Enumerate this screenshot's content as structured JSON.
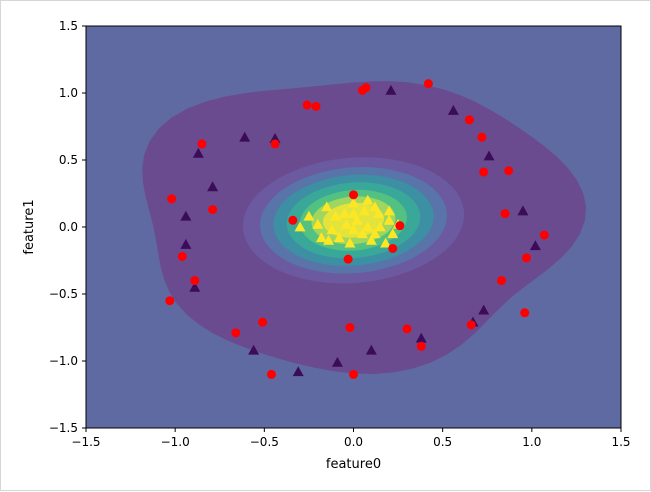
{
  "chart_data": {
    "type": "scatter",
    "title": "",
    "xlabel": "feature0",
    "ylabel": "feature1",
    "xlim": [
      -1.5,
      1.5
    ],
    "ylim": [
      -1.5,
      1.5
    ],
    "xticks": [
      "−1.5",
      "−1.0",
      "−0.5",
      "0.0",
      "0.5",
      "1.0",
      "1.5"
    ],
    "xtick_values": [
      -1.5,
      -1.0,
      -0.5,
      0.0,
      0.5,
      1.0,
      1.5
    ],
    "yticks": [
      "−1.5",
      "−1.0",
      "−0.5",
      "0.0",
      "0.5",
      "1.0",
      "1.5"
    ],
    "ytick_values": [
      -1.5,
      -1.0,
      -0.5,
      0.0,
      0.5,
      1.0,
      1.5
    ],
    "grid": false,
    "background": "decision-function contour (filled)",
    "contour_colors": [
      "#5f6aa3",
      "#6a4a8f",
      "#6e5fa0",
      "#4f78a6",
      "#3d97a1",
      "#3fb48f",
      "#7fcf6c",
      "#c8e14f",
      "#f0e53a"
    ],
    "contour_levels": [
      {
        "r": 0.92,
        "color": "#6b4b8f"
      },
      {
        "r": 0.58,
        "color": "#6b5aa0"
      },
      {
        "r": 0.49,
        "color": "#5874a8"
      },
      {
        "r": 0.42,
        "color": "#3d8fa3"
      },
      {
        "r": 0.35,
        "color": "#3aa898"
      },
      {
        "r": 0.28,
        "color": "#52c182"
      },
      {
        "r": 0.22,
        "color": "#9fd65f"
      },
      {
        "r": 0.16,
        "color": "#e3e43b"
      }
    ],
    "series": [
      {
        "marker": "triangle",
        "color": "#3b0c5a",
        "points": [
          [
            0.21,
            1.02
          ],
          [
            0.56,
            0.87
          ],
          [
            -0.61,
            0.67
          ],
          [
            -0.44,
            0.66
          ],
          [
            -0.87,
            0.55
          ],
          [
            0.76,
            0.53
          ],
          [
            -0.79,
            0.3
          ],
          [
            -0.94,
            0.08
          ],
          [
            0.95,
            0.12
          ],
          [
            -0.94,
            -0.13
          ],
          [
            1.02,
            -0.14
          ],
          [
            -0.89,
            -0.45
          ],
          [
            0.73,
            -0.62
          ],
          [
            0.67,
            -0.71
          ],
          [
            -0.56,
            -0.92
          ],
          [
            0.38,
            -0.83
          ],
          [
            0.1,
            -0.92
          ],
          [
            -0.31,
            -1.08
          ],
          [
            -0.09,
            -1.01
          ]
        ]
      },
      {
        "marker": "triangle",
        "color": "#fde725",
        "points": [
          [
            -0.15,
            0.15
          ],
          [
            -0.05,
            0.1
          ],
          [
            0.0,
            0.18
          ],
          [
            0.08,
            0.2
          ],
          [
            0.12,
            0.15
          ],
          [
            -0.2,
            0.02
          ],
          [
            -0.12,
            -0.02
          ],
          [
            -0.08,
            -0.08
          ],
          [
            0.02,
            0.05
          ],
          [
            0.05,
            -0.05
          ],
          [
            0.1,
            -0.1
          ],
          [
            0.15,
            0.0
          ],
          [
            0.2,
            0.05
          ],
          [
            0.22,
            -0.05
          ],
          [
            -0.02,
            -0.12
          ],
          [
            0.06,
            0.12
          ],
          [
            -0.1,
            0.08
          ],
          [
            0.18,
            -0.12
          ],
          [
            -0.18,
            -0.08
          ],
          [
            0.0,
            -0.02
          ],
          [
            0.25,
            0.02
          ],
          [
            -0.25,
            0.08
          ],
          [
            0.14,
            0.1
          ],
          [
            -0.04,
            0.02
          ],
          [
            0.08,
            0.0
          ],
          [
            0.12,
            -0.05
          ],
          [
            0.0,
            0.1
          ],
          [
            -0.14,
            -0.1
          ],
          [
            0.2,
            0.12
          ],
          [
            -0.3,
            0.0
          ]
        ]
      },
      {
        "marker": "circle",
        "color": "#ff0000",
        "points": [
          [
            0.42,
            1.07
          ],
          [
            0.07,
            1.04
          ],
          [
            0.05,
            1.02
          ],
          [
            -0.21,
            0.9
          ],
          [
            -0.26,
            0.91
          ],
          [
            0.65,
            0.8
          ],
          [
            0.72,
            0.67
          ],
          [
            -0.85,
            0.62
          ],
          [
            -0.44,
            0.62
          ],
          [
            0.73,
            0.41
          ],
          [
            0.87,
            0.42
          ],
          [
            -1.02,
            0.21
          ],
          [
            -0.79,
            0.13
          ],
          [
            0.85,
            0.1
          ],
          [
            0.0,
            0.24
          ],
          [
            -0.34,
            0.05
          ],
          [
            0.26,
            0.01
          ],
          [
            0.22,
            -0.16
          ],
          [
            -0.03,
            -0.24
          ],
          [
            1.07,
            -0.06
          ],
          [
            -0.96,
            -0.22
          ],
          [
            0.97,
            -0.23
          ],
          [
            -0.89,
            -0.4
          ],
          [
            0.83,
            -0.4
          ],
          [
            -1.03,
            -0.55
          ],
          [
            0.96,
            -0.64
          ],
          [
            -0.51,
            -0.71
          ],
          [
            0.66,
            -0.73
          ],
          [
            -0.66,
            -0.79
          ],
          [
            -0.02,
            -0.75
          ],
          [
            0.3,
            -0.76
          ],
          [
            0.38,
            -0.89
          ],
          [
            -0.46,
            -1.1
          ],
          [
            0.0,
            -1.1
          ]
        ]
      }
    ]
  }
}
